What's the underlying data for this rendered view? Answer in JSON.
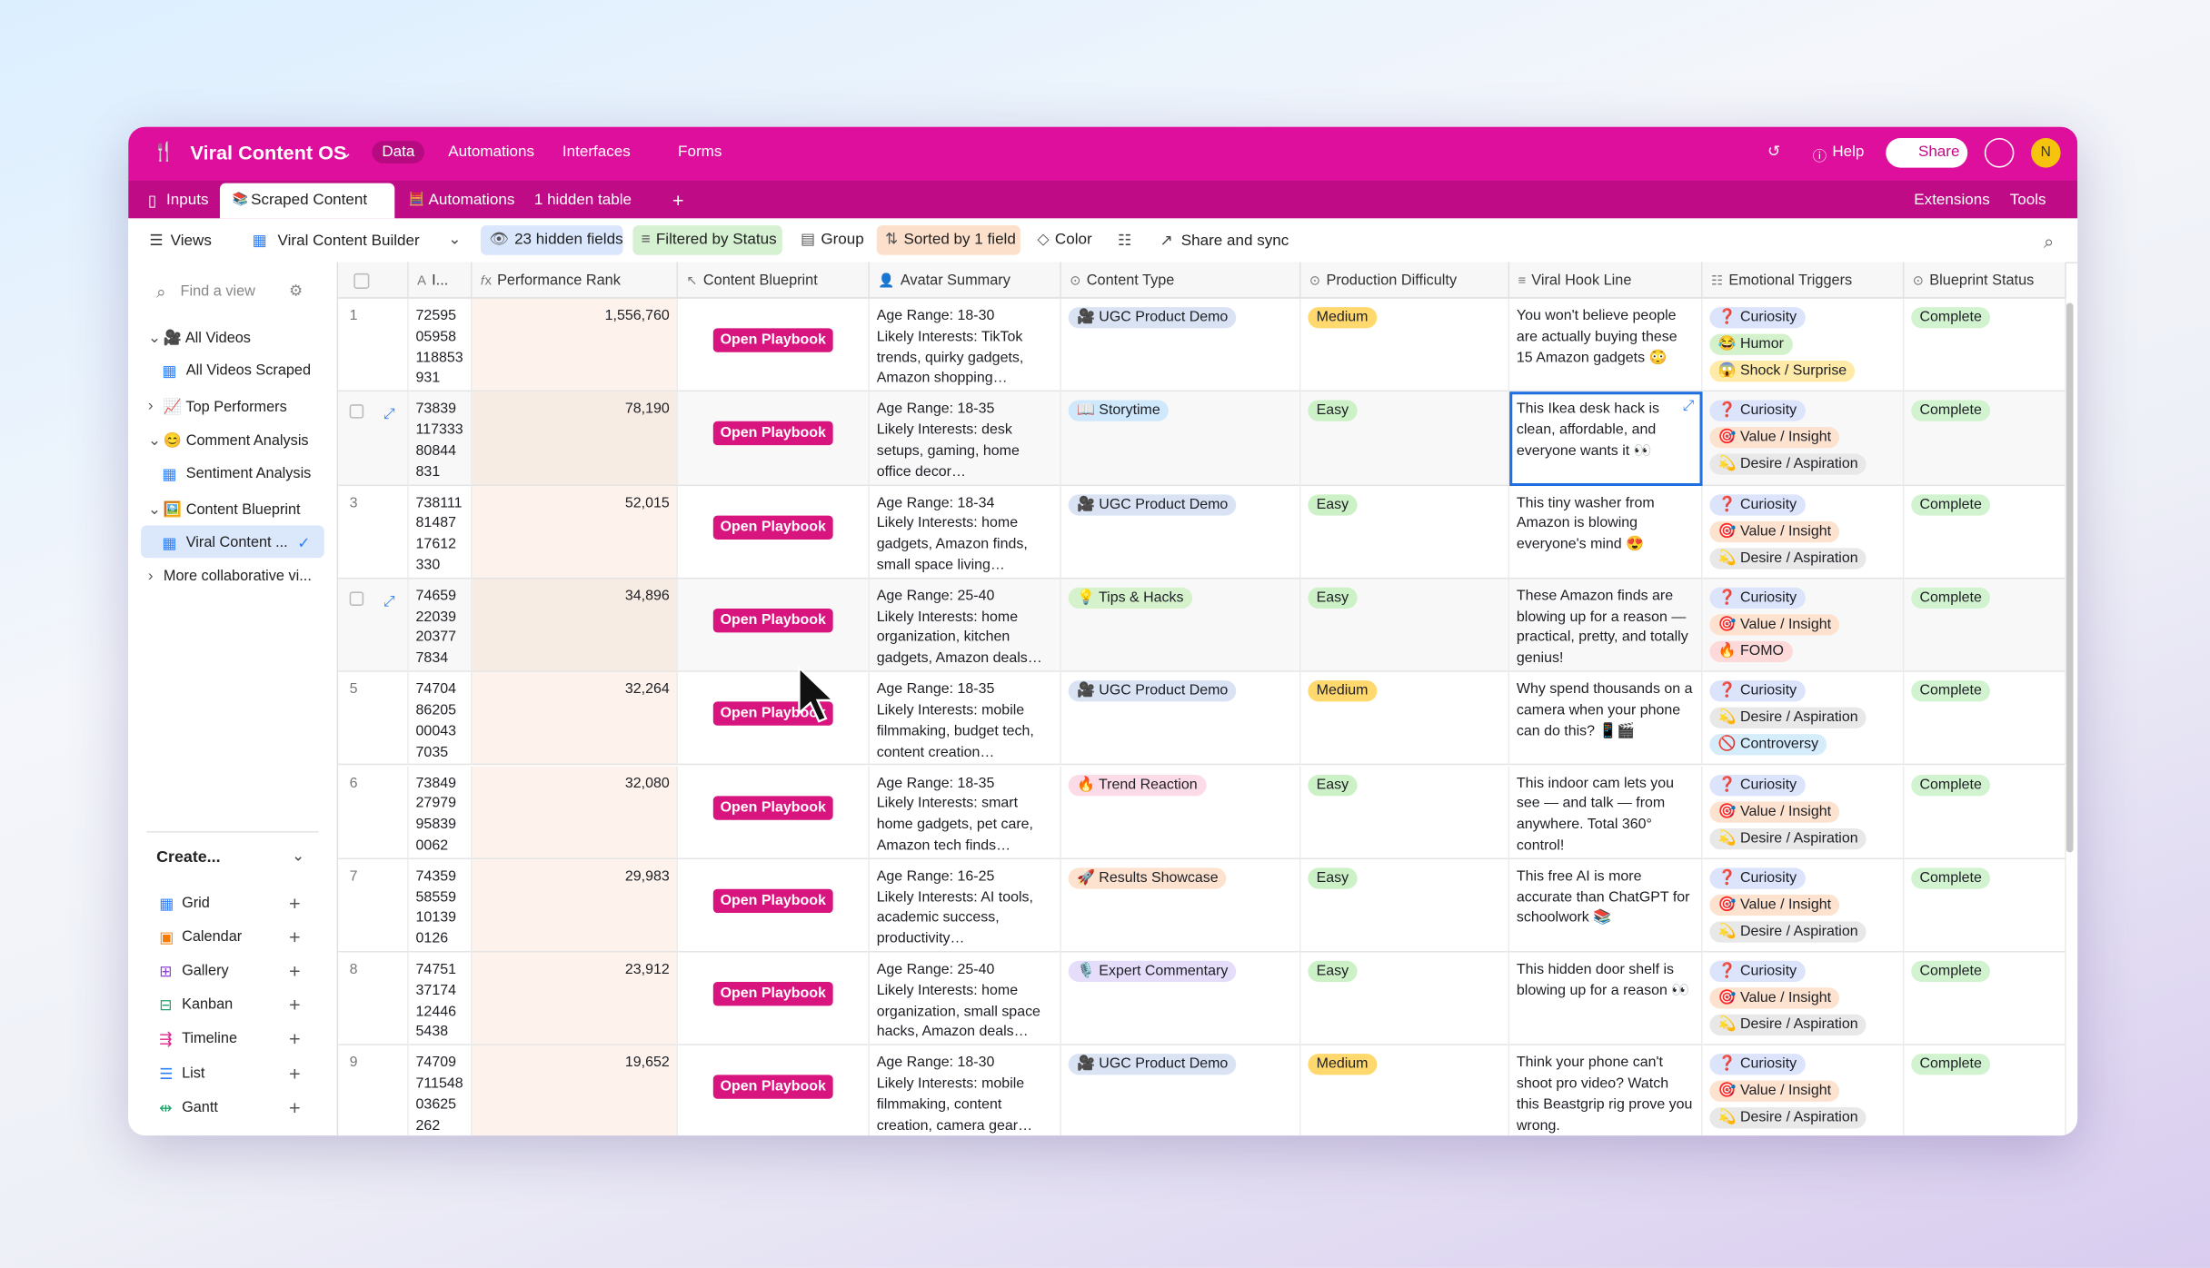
{
  "header": {
    "app_name": "Viral Content OS",
    "nav": [
      "Data",
      "Automations",
      "Interfaces",
      "Forms"
    ],
    "help": "Help",
    "share": "Share",
    "avatar": "N"
  },
  "tabs": {
    "items": [
      "Inputs",
      "Scraped Content",
      "Automations",
      "1 hidden table"
    ],
    "right": [
      "Extensions",
      "Tools"
    ]
  },
  "toolbar": {
    "views": "Views",
    "view_name": "Viral Content Builder",
    "hidden_fields": "23 hidden fields",
    "filter": "Filtered by Status",
    "group": "Group",
    "sort": "Sorted by 1 field",
    "color": "Color",
    "share_sync": "Share and sync"
  },
  "sidebar": {
    "search": "Find a view",
    "sections": [
      {
        "label": "🎥 All Videos",
        "views": [
          "All Videos Scraped"
        ]
      },
      {
        "label": "📈 Top Performers",
        "views": []
      },
      {
        "label": "😊 Comment Analysis",
        "views": [
          "Sentiment Analysis"
        ]
      },
      {
        "label": "🖼️ Content Blueprint",
        "views": [
          "Viral Content ..."
        ]
      },
      {
        "label": "More collaborative vi...",
        "views": []
      }
    ],
    "create": "Create...",
    "create_items": [
      "Grid",
      "Calendar",
      "Gallery",
      "Kanban",
      "Timeline",
      "List",
      "Gantt"
    ]
  },
  "table": {
    "columns": [
      "I...",
      "Performance Rank",
      "Content Blueprint",
      "Avatar Summary",
      "Content Type",
      "Production Difficulty",
      "Viral Hook Line",
      "Emotional Triggers",
      "Blueprint Status"
    ],
    "rows": [
      {
        "num": "1",
        "id": "7259505958118853931",
        "rank": "1,556,760",
        "blueprint": "Open Playbook",
        "avatar": "Age Range: 18-30\nLikely Interests: TikTok trends, quirky gadgets, Amazon shopping…",
        "type": {
          "label": "🎥 UGC Product Demo",
          "color": "#dae3f3"
        },
        "difficulty": {
          "label": "Medium",
          "color": "#ffd86e"
        },
        "hook": "You won't believe people are actually buying these 15 Amazon gadgets 😳",
        "triggers": [
          {
            "label": "❓ Curiosity",
            "color": "#dbe4fb"
          },
          {
            "label": "😂 Humor",
            "color": "#d3f1cb"
          },
          {
            "label": "😱 Shock / Surprise",
            "color": "#ffeaa8"
          }
        ],
        "status": "Complete"
      },
      {
        "num": null,
        "id": "7383911733380844831",
        "rank": "78,190",
        "blueprint": "Open Playbook",
        "avatar": "Age Range: 18-35\nLikely Interests: desk setups, gaming, home office decor…",
        "type": {
          "label": "📖 Storytime",
          "color": "#cfe8fb"
        },
        "difficulty": {
          "label": "Easy",
          "color": "#cdf1c6"
        },
        "hook": "This Ikea desk hack is clean, affordable, and everyone wants it 👀",
        "triggers": [
          {
            "label": "❓ Curiosity",
            "color": "#dbe4fb"
          },
          {
            "label": "🎯 Value / Insight",
            "color": "#fde2cf"
          },
          {
            "label": "💫 Desire / Aspiration",
            "color": "#e8e8e8"
          }
        ],
        "status": "Complete"
      },
      {
        "num": "3",
        "id": "7381118148717612330",
        "rank": "52,015",
        "blueprint": "Open Playbook",
        "avatar": "Age Range: 18-34\nLikely Interests: home gadgets, Amazon finds, small space living…",
        "type": {
          "label": "🎥 UGC Product Demo",
          "color": "#dae3f3"
        },
        "difficulty": {
          "label": "Easy",
          "color": "#cdf1c6"
        },
        "hook": "This tiny washer from Amazon is blowing everyone's mind 😍",
        "triggers": [
          {
            "label": "❓ Curiosity",
            "color": "#dbe4fb"
          },
          {
            "label": "🎯 Value / Insight",
            "color": "#fde2cf"
          },
          {
            "label": "💫 Desire / Aspiration",
            "color": "#e8e8e8"
          }
        ],
        "status": "Complete"
      },
      {
        "num": null,
        "id": "7465922039203777834",
        "rank": "34,896",
        "blueprint": "Open Playbook",
        "avatar": "Age Range: 25-40\nLikely Interests: home organization, kitchen gadgets, Amazon deals…",
        "type": {
          "label": "💡 Tips & Hacks",
          "color": "#d6f2cd"
        },
        "difficulty": {
          "label": "Easy",
          "color": "#cdf1c6"
        },
        "hook": "These Amazon finds are blowing up for a reason — practical, pretty, and totally genius!",
        "triggers": [
          {
            "label": "❓ Curiosity",
            "color": "#dbe4fb"
          },
          {
            "label": "🎯 Value / Insight",
            "color": "#fde2cf"
          },
          {
            "label": "🔥 FOMO",
            "color": "#fdd9da"
          }
        ],
        "status": "Complete"
      },
      {
        "num": "5",
        "id": "7470486205000437035",
        "rank": "32,264",
        "blueprint": "Open Playbook",
        "avatar": "Age Range: 18-35\nLikely Interests: mobile filmmaking, budget tech, content creation…",
        "type": {
          "label": "🎥 UGC Product Demo",
          "color": "#dae3f3"
        },
        "difficulty": {
          "label": "Medium",
          "color": "#ffd86e"
        },
        "hook": "Why spend thousands on a camera when your phone can do this? 📱🎬",
        "triggers": [
          {
            "label": "❓ Curiosity",
            "color": "#dbe4fb"
          },
          {
            "label": "💫 Desire / Aspiration",
            "color": "#e8e8e8"
          },
          {
            "label": "🚫 Controversy",
            "color": "#d5ecfb"
          }
        ],
        "status": "Complete"
      },
      {
        "num": "6",
        "id": "7384927979958390062",
        "rank": "32,080",
        "blueprint": "Open Playbook",
        "avatar": "Age Range: 18-35\nLikely Interests: smart home gadgets, pet care, Amazon tech finds…",
        "type": {
          "label": "🔥 Trend Reaction",
          "color": "#fbdbe7"
        },
        "difficulty": {
          "label": "Easy",
          "color": "#cdf1c6"
        },
        "hook": "This indoor cam lets you see — and talk — from anywhere. Total 360° control!",
        "triggers": [
          {
            "label": "❓ Curiosity",
            "color": "#dbe4fb"
          },
          {
            "label": "🎯 Value / Insight",
            "color": "#fde2cf"
          },
          {
            "label": "💫 Desire / Aspiration",
            "color": "#e8e8e8"
          }
        ],
        "status": "Complete"
      },
      {
        "num": "7",
        "id": "7435958559101390126",
        "rank": "29,983",
        "blueprint": "Open Playbook",
        "avatar": "Age Range: 16-25\nLikely Interests: AI tools, academic success, productivity…",
        "type": {
          "label": "🚀 Results Showcase",
          "color": "#fde3cf"
        },
        "difficulty": {
          "label": "Easy",
          "color": "#cdf1c6"
        },
        "hook": "This free AI is more accurate than ChatGPT for schoolwork 📚",
        "triggers": [
          {
            "label": "❓ Curiosity",
            "color": "#dbe4fb"
          },
          {
            "label": "🎯 Value / Insight",
            "color": "#fde2cf"
          },
          {
            "label": "💫 Desire / Aspiration",
            "color": "#e8e8e8"
          }
        ],
        "status": "Complete"
      },
      {
        "num": "8",
        "id": "7475137174124465438",
        "rank": "23,912",
        "blueprint": "Open Playbook",
        "avatar": "Age Range: 25-40\nLikely Interests: home organization, small space hacks, Amazon deals…",
        "type": {
          "label": "🎙️ Expert Commentary",
          "color": "#e5ddfa"
        },
        "difficulty": {
          "label": "Easy",
          "color": "#cdf1c6"
        },
        "hook": "This hidden door shelf is blowing up for a reason 👀",
        "triggers": [
          {
            "label": "❓ Curiosity",
            "color": "#dbe4fb"
          },
          {
            "label": "🎯 Value / Insight",
            "color": "#fde2cf"
          },
          {
            "label": "💫 Desire / Aspiration",
            "color": "#e8e8e8"
          }
        ],
        "status": "Complete"
      },
      {
        "num": "9",
        "id": "7470971154803625262",
        "rank": "19,652",
        "blueprint": "Open Playbook",
        "avatar": "Age Range: 18-30\nLikely Interests: mobile filmmaking, content creation, camera gear…",
        "type": {
          "label": "🎥 UGC Product Demo",
          "color": "#dae3f3"
        },
        "difficulty": {
          "label": "Medium",
          "color": "#ffd86e"
        },
        "hook": "Think your phone can't shoot pro video? Watch this Beastgrip rig prove you wrong.",
        "triggers": [
          {
            "label": "❓ Curiosity",
            "color": "#dbe4fb"
          },
          {
            "label": "🎯 Value / Insight",
            "color": "#fde2cf"
          },
          {
            "label": "💫 Desire / Aspiration",
            "color": "#e8e8e8"
          }
        ],
        "status": "Complete"
      }
    ]
  }
}
